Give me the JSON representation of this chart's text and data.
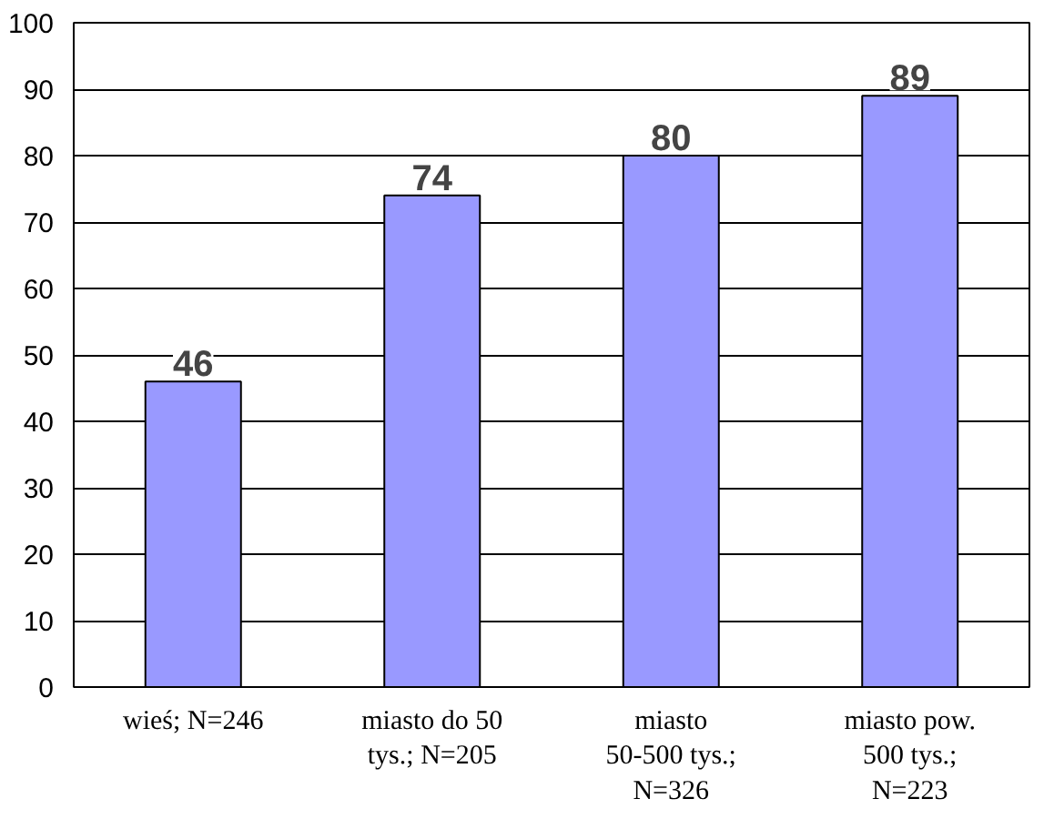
{
  "chart_data": {
    "type": "bar",
    "categories": [
      "wieś; N=246",
      "miasto do 50 tys.; N=205",
      "miasto 50-500 tys.; N=326",
      "miasto pow. 500 tys.; N=223"
    ],
    "values": [
      46,
      74,
      80,
      89
    ],
    "color": "#9999ff",
    "ylim": [
      0,
      100
    ],
    "yticks": [
      0,
      10,
      20,
      30,
      40,
      50,
      60,
      70,
      80,
      90,
      100
    ],
    "grid": "y",
    "data_labels": true
  }
}
